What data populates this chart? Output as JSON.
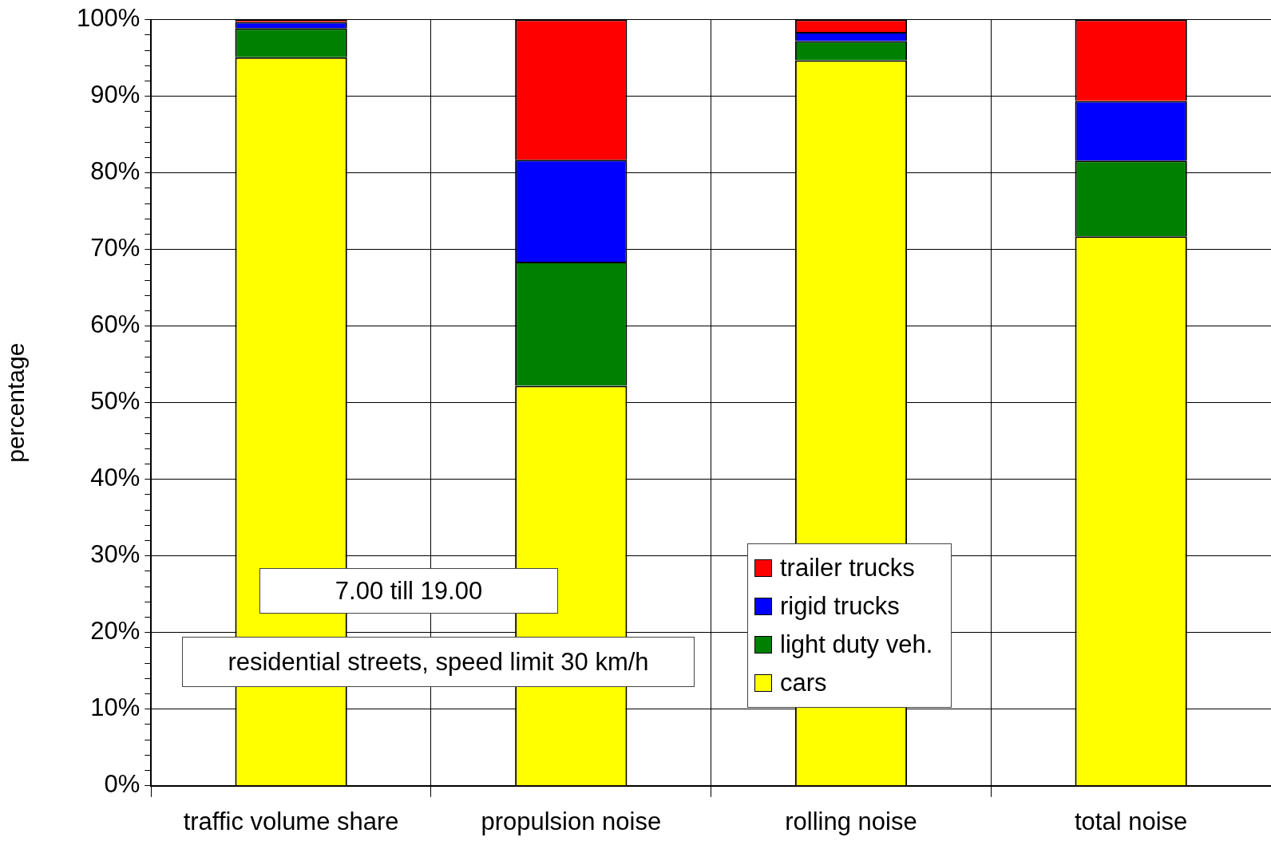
{
  "chart_data": {
    "type": "bar",
    "stacked": true,
    "ylabel": "percentage",
    "categories": [
      "traffic volume share",
      "propulsion noise",
      "rolling noise",
      "total noise"
    ],
    "series": [
      {
        "name": "cars",
        "color": "#ffff00",
        "values": [
          95.1,
          52.2,
          94.7,
          71.7
        ]
      },
      {
        "name": "light duty veh.",
        "color": "#008000",
        "values": [
          3.8,
          16.2,
          2.5,
          9.9
        ]
      },
      {
        "name": "rigid trucks",
        "color": "#0000ff",
        "values": [
          0.8,
          13.3,
          1.2,
          7.8
        ]
      },
      {
        "name": "trailer trucks",
        "color": "#ff0000",
        "values": [
          0.3,
          18.3,
          1.6,
          10.6
        ]
      }
    ],
    "ylim": [
      0,
      100
    ],
    "yticks": [
      {
        "value": 0,
        "label": "0%"
      },
      {
        "value": 2,
        "label": null
      },
      {
        "value": 4,
        "label": null
      },
      {
        "value": 6,
        "label": null
      },
      {
        "value": 8,
        "label": null
      },
      {
        "value": 10,
        "label": "10%"
      },
      {
        "value": 12,
        "label": null
      },
      {
        "value": 14,
        "label": null
      },
      {
        "value": 16,
        "label": null
      },
      {
        "value": 18,
        "label": null
      },
      {
        "value": 20,
        "label": "20%"
      },
      {
        "value": 22,
        "label": null
      },
      {
        "value": 24,
        "label": null
      },
      {
        "value": 26,
        "label": null
      },
      {
        "value": 28,
        "label": null
      },
      {
        "value": 30,
        "label": "30%"
      },
      {
        "value": 32,
        "label": null
      },
      {
        "value": 34,
        "label": null
      },
      {
        "value": 36,
        "label": null
      },
      {
        "value": 38,
        "label": null
      },
      {
        "value": 40,
        "label": "40%"
      },
      {
        "value": 42,
        "label": null
      },
      {
        "value": 44,
        "label": null
      },
      {
        "value": 46,
        "label": null
      },
      {
        "value": 48,
        "label": null
      },
      {
        "value": 50,
        "label": "50%"
      },
      {
        "value": 52,
        "label": null
      },
      {
        "value": 54,
        "label": null
      },
      {
        "value": 56,
        "label": null
      },
      {
        "value": 58,
        "label": null
      },
      {
        "value": 60,
        "label": "60%"
      },
      {
        "value": 62,
        "label": null
      },
      {
        "value": 64,
        "label": null
      },
      {
        "value": 66,
        "label": null
      },
      {
        "value": 68,
        "label": null
      },
      {
        "value": 70,
        "label": "70%"
      },
      {
        "value": 72,
        "label": null
      },
      {
        "value": 74,
        "label": null
      },
      {
        "value": 76,
        "label": null
      },
      {
        "value": 78,
        "label": null
      },
      {
        "value": 80,
        "label": "80%"
      },
      {
        "value": 82,
        "label": null
      },
      {
        "value": 84,
        "label": null
      },
      {
        "value": 86,
        "label": null
      },
      {
        "value": 88,
        "label": null
      },
      {
        "value": 90,
        "label": "90%"
      },
      {
        "value": 92,
        "label": null
      },
      {
        "value": 94,
        "label": null
      },
      {
        "value": 96,
        "label": null
      },
      {
        "value": 98,
        "label": null
      },
      {
        "value": 100,
        "label": "100%"
      }
    ],
    "grid": true,
    "legend": "bottom right",
    "annotations": [
      "7.00 till 19.00",
      "residential streets, speed limit 30 km/h"
    ]
  }
}
